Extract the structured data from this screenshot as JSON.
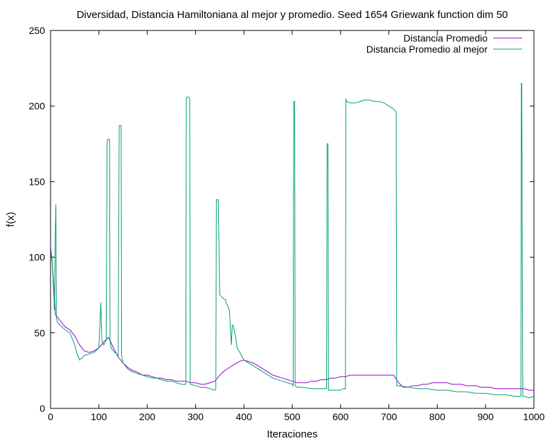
{
  "chart_data": {
    "type": "line",
    "title": "Diversidad, Distancia Hamiltoniana al mejor y promedio. Seed 1654 Griewank function dim 50",
    "xlabel": "Iteraciones",
    "ylabel": "f(x)",
    "xlim": [
      0,
      1000
    ],
    "ylim": [
      0,
      250
    ],
    "xticks": [
      0,
      100,
      200,
      300,
      400,
      500,
      600,
      700,
      800,
      900,
      1000
    ],
    "yticks": [
      0,
      50,
      100,
      150,
      200,
      250
    ],
    "grid": false,
    "legend_position": "top-right",
    "series": [
      {
        "name": "Distancia Promedio",
        "color": "#9400d3",
        "x": [
          0,
          5,
          10,
          20,
          30,
          40,
          50,
          60,
          70,
          80,
          90,
          100,
          110,
          120,
          130,
          140,
          150,
          160,
          170,
          180,
          190,
          200,
          210,
          220,
          230,
          240,
          250,
          260,
          270,
          280,
          290,
          300,
          310,
          320,
          330,
          340,
          350,
          360,
          370,
          380,
          390,
          400,
          410,
          420,
          430,
          440,
          450,
          460,
          470,
          480,
          490,
          500,
          510,
          520,
          530,
          540,
          550,
          560,
          570,
          580,
          590,
          600,
          610,
          620,
          630,
          640,
          650,
          660,
          670,
          680,
          690,
          700,
          710,
          720,
          730,
          740,
          750,
          760,
          770,
          780,
          790,
          800,
          810,
          820,
          830,
          840,
          850,
          860,
          870,
          880,
          890,
          900,
          910,
          920,
          930,
          940,
          950,
          960,
          970,
          980,
          990,
          1000
        ],
        "values": [
          108,
          90,
          62,
          58,
          54,
          52,
          48,
          42,
          38,
          37,
          38,
          40,
          44,
          47,
          40,
          34,
          30,
          27,
          25,
          24,
          22,
          22,
          21,
          20,
          20,
          19,
          19,
          18,
          18,
          18,
          17,
          17,
          16,
          16,
          17,
          18,
          22,
          25,
          27,
          29,
          31,
          32,
          31,
          30,
          28,
          26,
          24,
          22,
          21,
          20,
          19,
          18,
          17,
          17,
          17,
          18,
          18,
          19,
          19,
          20,
          20,
          21,
          21,
          22,
          22,
          22,
          22,
          22,
          22,
          22,
          22,
          22,
          22,
          17,
          14,
          14,
          15,
          15,
          16,
          16,
          17,
          17,
          17,
          17,
          16,
          16,
          16,
          15,
          15,
          15,
          14,
          14,
          14,
          13,
          13,
          13,
          13,
          13,
          13,
          13,
          12,
          12
        ]
      },
      {
        "name": "Distancia Promedio al mejor",
        "color": "#009e73",
        "x": [
          0,
          3,
          6,
          8,
          10,
          11,
          12,
          14,
          20,
          30,
          40,
          50,
          55,
          60,
          70,
          80,
          90,
          100,
          104,
          106,
          110,
          115,
          117,
          118,
          120,
          122,
          123,
          125,
          130,
          140,
          142,
          143,
          146,
          147,
          150,
          160,
          170,
          180,
          190,
          200,
          210,
          220,
          230,
          240,
          250,
          260,
          270,
          280,
          281,
          282,
          285,
          288,
          289,
          290,
          300,
          310,
          320,
          330,
          340,
          342,
          343,
          346,
          347,
          350,
          360,
          362,
          363,
          370,
          374,
          376,
          378,
          380,
          384,
          386,
          390,
          400,
          420,
          440,
          460,
          480,
          500,
          502,
          503,
          505,
          506,
          510,
          520,
          540,
          560,
          570,
          571,
          572,
          574,
          575,
          580,
          590,
          600,
          605,
          610,
          611,
          612,
          620,
          630,
          640,
          650,
          660,
          670,
          680,
          690,
          700,
          710,
          715,
          716,
          717,
          720,
          740,
          760,
          780,
          800,
          820,
          840,
          860,
          880,
          900,
          920,
          940,
          960,
          970,
          973,
          974,
          975,
          976,
          977,
          980,
          990,
          1000
        ],
        "values": [
          105,
          100,
          80,
          65,
          120,
          135,
          60,
          57,
          55,
          52,
          50,
          42,
          36,
          32,
          35,
          36,
          37,
          40,
          70,
          45,
          42,
          45,
          175,
          178,
          178,
          178,
          45,
          40,
          38,
          35,
          187,
          187,
          187,
          35,
          30,
          26,
          24,
          23,
          22,
          21,
          20,
          20,
          19,
          18,
          18,
          17,
          16,
          16,
          205,
          206,
          206,
          205,
          16,
          16,
          15,
          14,
          14,
          13,
          12,
          13,
          138,
          138,
          138,
          75,
          72,
          72,
          70,
          65,
          42,
          55,
          55,
          52,
          45,
          40,
          38,
          32,
          28,
          24,
          20,
          18,
          16,
          15,
          203,
          203,
          15,
          14,
          14,
          13,
          13,
          13,
          13,
          175,
          175,
          12,
          12,
          12,
          12,
          13,
          13,
          205,
          203,
          202,
          202,
          203,
          204,
          204,
          203,
          203,
          202,
          200,
          198,
          196,
          15,
          15,
          15,
          14,
          13,
          13,
          12,
          12,
          11,
          11,
          10,
          10,
          9,
          9,
          8,
          8,
          8,
          215,
          215,
          110,
          8,
          8,
          7,
          8
        ]
      }
    ]
  }
}
